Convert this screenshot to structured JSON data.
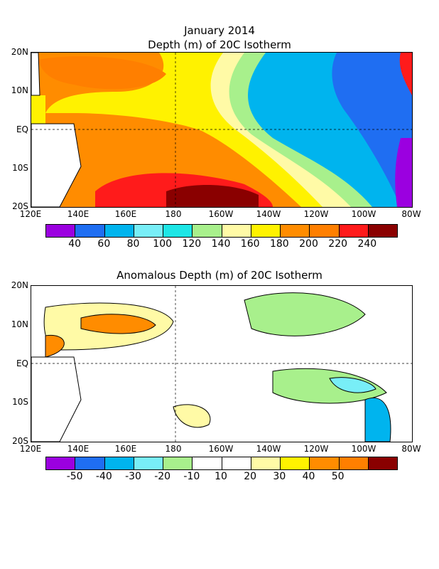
{
  "titles": {
    "main_line1": "January 2014",
    "main_line2": "Depth (m) of 20C Isotherm",
    "anomaly": "Anomalous Depth (m) of 20C Isotherm"
  },
  "axes": {
    "lat_labels": [
      "20N",
      "10N",
      "EQ",
      "10S",
      "20S"
    ],
    "lon_labels": [
      "120E",
      "140E",
      "160E",
      "180",
      "160W",
      "140W",
      "120W",
      "100W",
      "80W"
    ]
  },
  "colorbar_depth": {
    "colors": [
      "#9b00e0",
      "#1f6ef2",
      "#00b4ee",
      "#78eef7",
      "#1de6e6",
      "#a8f08c",
      "#fffaa6",
      "#fff200",
      "#ff8c00",
      "#ff7f00",
      "#ff1b1b",
      "#8a0000"
    ],
    "labels": [
      "40",
      "60",
      "80",
      "100",
      "120",
      "140",
      "160",
      "180",
      "200",
      "220",
      "240"
    ]
  },
  "colorbar_anomaly": {
    "colors": [
      "#9b00e0",
      "#1f6ef2",
      "#00b4ee",
      "#78eef7",
      "#a8f08c",
      "#ffffff",
      "#ffffff",
      "#fffaa6",
      "#fff200",
      "#ff8c00",
      "#ff7f00",
      "#8a0000"
    ],
    "labels": [
      "-50",
      "-40",
      "-30",
      "-20",
      "-10",
      "10",
      "20",
      "30",
      "40",
      "50"
    ]
  },
  "icons": {
    "map1": "depth-contour-map",
    "map2": "anomaly-contour-map"
  }
}
